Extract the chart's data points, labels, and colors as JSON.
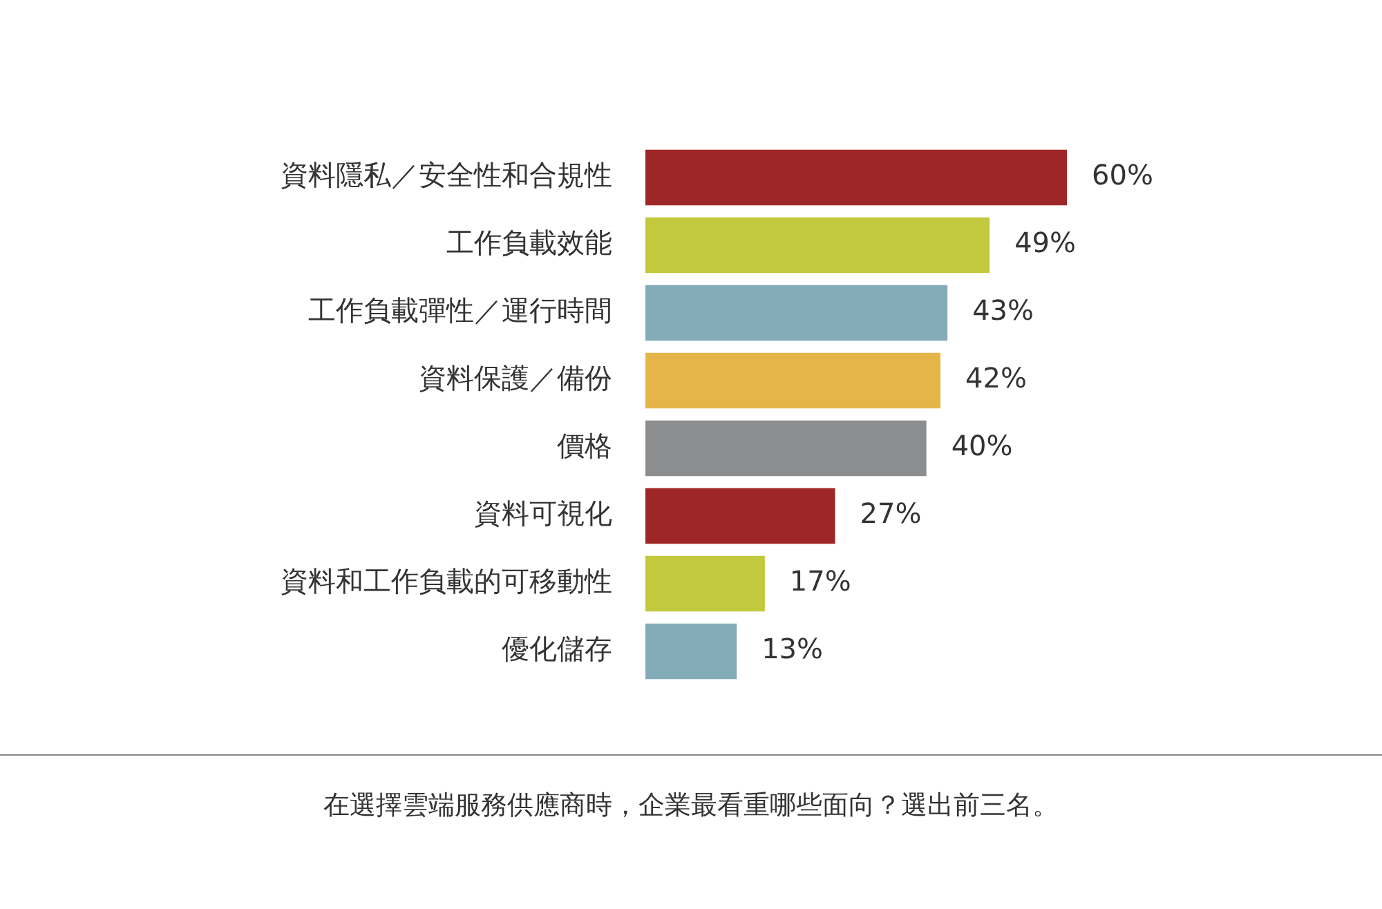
{
  "chart_data": {
    "type": "bar",
    "orientation": "horizontal",
    "legend": false,
    "tick_labels": "y",
    "categories": [
      "資料隱私／安全性和合規性",
      "工作負載效能",
      "工作負載彈性／運行時間",
      "資料保護／備份",
      "價格",
      "資料可視化",
      "資料和工作負載的可移動性",
      "優化儲存"
    ],
    "values": [
      60,
      49,
      43,
      42,
      40,
      27,
      17,
      13
    ],
    "value_labels": [
      "60%",
      "49%",
      "43%",
      "42%",
      "40%",
      "27%",
      "17%",
      "13%"
    ],
    "colors": [
      "#9e2626",
      "#c2c93c",
      "#84abb8",
      "#e6b54a",
      "#8c8d8f",
      "#9e2626",
      "#c2c93c",
      "#84abb8"
    ],
    "annotations": [
      "在選擇雲端服務供應商時，企業最看重哪些面向？選出前三名。"
    ]
  }
}
